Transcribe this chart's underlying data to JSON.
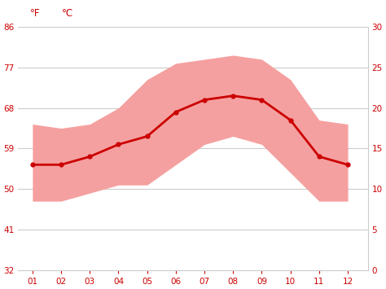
{
  "months": [
    1,
    2,
    3,
    4,
    5,
    6,
    7,
    8,
    9,
    10,
    11,
    12
  ],
  "month_labels": [
    "01",
    "02",
    "03",
    "04",
    "05",
    "06",
    "07",
    "08",
    "09",
    "10",
    "11",
    "12"
  ],
  "mean_c": [
    13.0,
    13.0,
    14.0,
    15.5,
    16.5,
    19.5,
    21.0,
    21.5,
    21.0,
    18.5,
    14.0,
    13.0
  ],
  "max_c": [
    18.0,
    17.5,
    18.0,
    20.0,
    23.5,
    25.5,
    26.0,
    26.5,
    26.0,
    23.5,
    18.5,
    18.0
  ],
  "min_c": [
    8.5,
    8.5,
    9.5,
    10.5,
    10.5,
    13.0,
    15.5,
    16.5,
    15.5,
    12.0,
    8.5,
    8.5
  ],
  "line_color": "#cc0000",
  "band_color": "#f5a0a0",
  "background_color": "#ffffff",
  "grid_color": "#cccccc",
  "tick_color": "#cc0000",
  "ylim_c": [
    0,
    30
  ],
  "ylabel_f": "°F",
  "ylabel_c": "°C",
  "fahrenheit_ticks": [
    32,
    41,
    50,
    59,
    68,
    77,
    86
  ],
  "celsius_ticks": [
    0,
    5,
    10,
    15,
    20,
    25,
    30
  ]
}
